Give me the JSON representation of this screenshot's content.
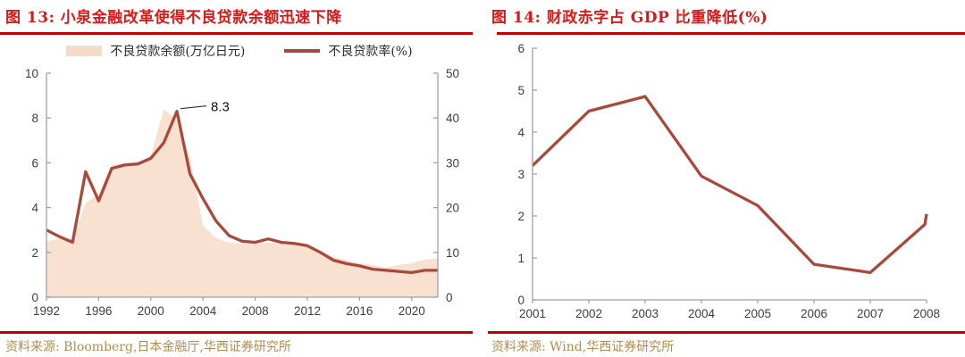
{
  "panels": [
    {
      "title": "图 13: 小泉金融改革使得不良贷款余额迅速下降",
      "legend": [
        "不良贷款余额(万亿日元)",
        "不良贷款率(%)"
      ],
      "source": "资料来源: Bloomberg,日本金融厅,华西证券研究所"
    },
    {
      "title": "图 14: 财政赤字占 GDP 比重降低(%)",
      "source": "资料来源: Wind,华西证券研究所"
    }
  ],
  "colors": {
    "title_red": "#d51a1a",
    "rule_red": "#c00000",
    "line_brick": "#a8493b",
    "area_peach": "#f8e1d1",
    "source_gold": "#b08c50",
    "axis_gray": "#a0a0a0",
    "tick_text": "#3d3d3d"
  },
  "chart_data": [
    {
      "type": "area",
      "title": "小泉金融改革使得不良贷款余额迅速下降",
      "x": [
        1992,
        1993,
        1994,
        1995,
        1996,
        1997,
        1998,
        1999,
        2000,
        2001,
        2002,
        2003,
        2004,
        2005,
        2006,
        2007,
        2008,
        2009,
        2010,
        2011,
        2012,
        2013,
        2014,
        2015,
        2016,
        2017,
        2018,
        2019,
        2020,
        2021,
        2022
      ],
      "x_range": [
        1992,
        2022
      ],
      "x_ticks": [
        1992,
        1996,
        2000,
        2004,
        2008,
        2012,
        2016,
        2020
      ],
      "left_axis": {
        "label": "不良贷款率(%)",
        "min": 0,
        "max": 10,
        "ticks": [
          0,
          2,
          4,
          6,
          8,
          10
        ]
      },
      "right_axis": {
        "label": "不良贷款余额(万亿日元)",
        "min": 0,
        "max": 50,
        "ticks": [
          0,
          10,
          20,
          30,
          40,
          50
        ]
      },
      "grid": false,
      "legend_position": "top",
      "series": [
        {
          "name": "不良贷款余额(万亿日元)",
          "key": "npl-balance-area",
          "render": "area",
          "axis": "right",
          "color": "#f8e1d1",
          "values": [
            12.5,
            13,
            13,
            21,
            23,
            29.5,
            30,
            30,
            31.5,
            42,
            39.5,
            31,
            16,
            13.2,
            12.2,
            12,
            11.9,
            12.2,
            12,
            11.8,
            11.4,
            10.2,
            9,
            8.2,
            7.6,
            7.2,
            6.6,
            7.2,
            7.6,
            8.4,
            8.6
          ]
        },
        {
          "name": "不良贷款率(%)",
          "key": "npl-ratio-line",
          "render": "line",
          "axis": "left",
          "color": "#a8493b",
          "values": [
            3.0,
            2.7,
            2.45,
            5.6,
            4.3,
            5.75,
            5.9,
            5.95,
            6.2,
            6.9,
            8.3,
            5.5,
            4.4,
            3.4,
            2.75,
            2.5,
            2.45,
            2.6,
            2.45,
            2.4,
            2.3,
            2.0,
            1.65,
            1.5,
            1.4,
            1.25,
            1.2,
            1.15,
            1.1,
            1.2,
            1.2
          ]
        }
      ],
      "annotation": {
        "text": "8.3",
        "x": 2002,
        "y": 8.3,
        "axis": "left"
      }
    },
    {
      "type": "line",
      "title": "财政赤字占 GDP 比重降低(%)",
      "x": [
        2001,
        2002,
        2003,
        2004,
        2005,
        2006,
        2007,
        2007.97,
        2008
      ],
      "x_range": [
        2001,
        2008
      ],
      "x_ticks": [
        2001,
        2002,
        2003,
        2004,
        2005,
        2006,
        2007,
        2008
      ],
      "left_axis": {
        "label": "财政赤字占GDP比重(%)",
        "min": 0,
        "max": 6,
        "ticks": [
          0,
          1,
          2,
          3,
          4,
          5,
          6
        ]
      },
      "grid": false,
      "series": [
        {
          "name": "财政赤字占GDP比重(%)",
          "key": "deficit-gdp-line",
          "render": "line",
          "axis": "left",
          "color": "#a8493b",
          "values": [
            3.2,
            4.5,
            4.85,
            2.95,
            2.25,
            0.85,
            0.65,
            1.8,
            2.05
          ]
        }
      ]
    }
  ]
}
